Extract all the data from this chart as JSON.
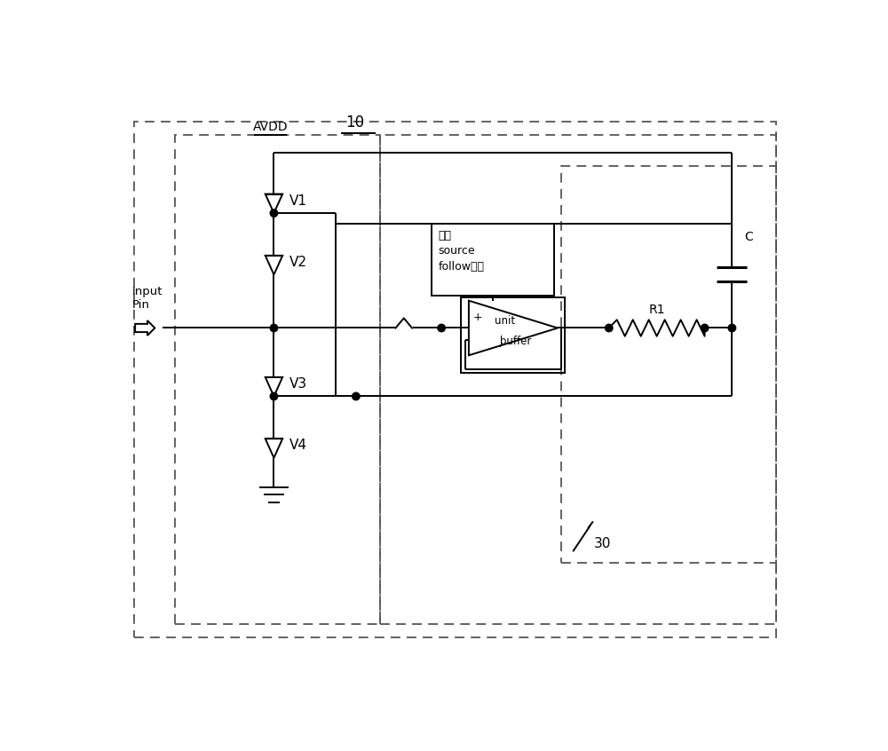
{
  "fig_width": 10.0,
  "fig_height": 8.46,
  "bg_color": "#ffffff",
  "line_color": "#000000",
  "avdd_label": "AVDD",
  "label_10": "10",
  "label_30": "30",
  "diode_labels": [
    "V1",
    "V2",
    "V3",
    "V4"
  ],
  "input_label": "Input\nPin",
  "box1_label": "辅助\nsource\nfollow电路",
  "r1_label": "R1",
  "c_label": "C",
  "plus_label": "+",
  "amp_text1": "unit",
  "amp_text2": "_buffer"
}
